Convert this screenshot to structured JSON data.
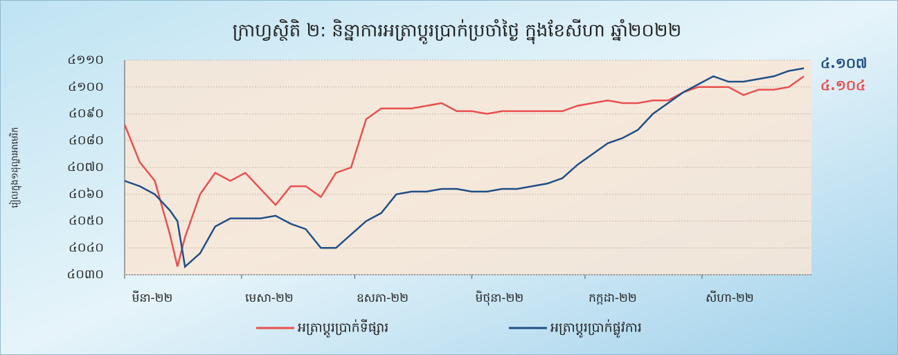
{
  "chart_data": {
    "type": "line",
    "title": "ក្រាហ្វស្ថិតិ ២: និន្នាការអត្រាប្តូរប្រាក់ប្រចាំថ្ងៃ ក្នុងខែសីហា ឆ្នាំ២០២២",
    "y_label": "រៀលក្នុង១ដុល្លារអាមេរិក",
    "x": [
      0,
      4,
      8,
      12,
      14,
      16,
      20,
      24,
      28,
      32,
      36,
      40,
      44,
      48,
      52,
      56,
      60,
      64,
      68,
      72,
      76,
      80,
      84,
      88,
      92,
      96,
      100,
      104,
      108,
      112,
      116,
      120,
      124,
      128,
      132,
      136,
      140,
      144,
      148,
      152,
      156,
      160,
      164,
      168,
      172,
      176,
      180
    ],
    "xlim": [
      0,
      182
    ],
    "xticks": [
      {
        "value": 0,
        "label": "មីនា-២២"
      },
      {
        "value": 31,
        "label": "មេសា-២២"
      },
      {
        "value": 61,
        "label": "ឧសភា-២២"
      },
      {
        "value": 92,
        "label": "មិថុនា-២២"
      },
      {
        "value": 122,
        "label": "កក្កដា-២២"
      },
      {
        "value": 153,
        "label": "សីហា-២២"
      }
    ],
    "ylim": [
      4030,
      4110
    ],
    "yticks": [
      {
        "value": 4030,
        "label": "៤០៣០"
      },
      {
        "value": 4040,
        "label": "៤០៤០"
      },
      {
        "value": 4050,
        "label": "៤០៥០"
      },
      {
        "value": 4060,
        "label": "៤០៦០"
      },
      {
        "value": 4070,
        "label": "៤០៧០"
      },
      {
        "value": 4080,
        "label": "៤០៨០"
      },
      {
        "value": 4090,
        "label": "៤០៩០"
      },
      {
        "value": 4100,
        "label": "៤១០០"
      },
      {
        "value": 4110,
        "label": "៤១១០"
      }
    ],
    "grid": true,
    "series": [
      {
        "name": "អត្រាប្តូរប្រាក់ទីផ្សារ",
        "color": "#e8504f",
        "last_label": "៤.១០៤",
        "values": [
          4086,
          4072,
          4065,
          4045,
          4033,
          4044,
          4060,
          4068,
          4065,
          4068,
          4062,
          4056,
          4063,
          4063,
          4059,
          4068,
          4070,
          4088,
          4092,
          4092,
          4092,
          4093,
          4094,
          4091,
          4091,
          4090,
          4091,
          4091,
          4091,
          4091,
          4091,
          4093,
          4094,
          4095,
          4094,
          4094,
          4095,
          4095,
          4098,
          4100,
          4100,
          4100,
          4097,
          4099,
          4099,
          4100,
          4104
        ]
      },
      {
        "name": "អត្រាប្តូរប្រាក់ផ្លូវការ",
        "color": "#1f4e85",
        "last_label": "៤.១០៧",
        "values": [
          4065,
          4063,
          4060,
          4054,
          4050,
          4033,
          4038,
          4048,
          4051,
          4051,
          4051,
          4052,
          4049,
          4047,
          4040,
          4040,
          4045,
          4050,
          4053,
          4060,
          4061,
          4061,
          4062,
          4062,
          4061,
          4061,
          4062,
          4062,
          4063,
          4064,
          4066,
          4071,
          4075,
          4079,
          4081,
          4084,
          4090,
          4094,
          4098,
          4101,
          4104,
          4102,
          4102,
          4103,
          4104,
          4106,
          4107
        ]
      }
    ]
  }
}
